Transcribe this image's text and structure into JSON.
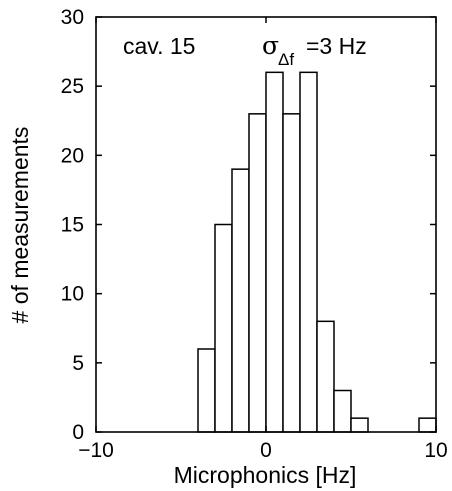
{
  "chart_data": {
    "type": "bar",
    "title": "",
    "xlabel": "Microphonics [Hz]",
    "ylabel": "# of measurements",
    "xlim": [
      -10,
      10
    ],
    "ylim": [
      0,
      30
    ],
    "x_ticks": [
      "−10",
      "0",
      "10"
    ],
    "y_ticks": [
      "0",
      "5",
      "10",
      "15",
      "20",
      "25",
      "30"
    ],
    "bin_width": 1,
    "bins": [
      {
        "x": -3.5,
        "count": 6
      },
      {
        "x": -2.5,
        "count": 15
      },
      {
        "x": -1.5,
        "count": 19
      },
      {
        "x": -0.5,
        "count": 23
      },
      {
        "x": 0.5,
        "count": 26
      },
      {
        "x": 1.5,
        "count": 23
      },
      {
        "x": 2.5,
        "count": 26
      },
      {
        "x": 3.5,
        "count": 8
      },
      {
        "x": 4.5,
        "count": 3
      },
      {
        "x": 5.5,
        "count": 1
      },
      {
        "x": 9.5,
        "count": 1
      }
    ],
    "annotation": {
      "cavity": "cav. 15",
      "sigma_symbol": "σ",
      "sigma_subscript": "Δf",
      "sigma_value": "=3 Hz"
    },
    "grid": false,
    "legend": "none"
  }
}
